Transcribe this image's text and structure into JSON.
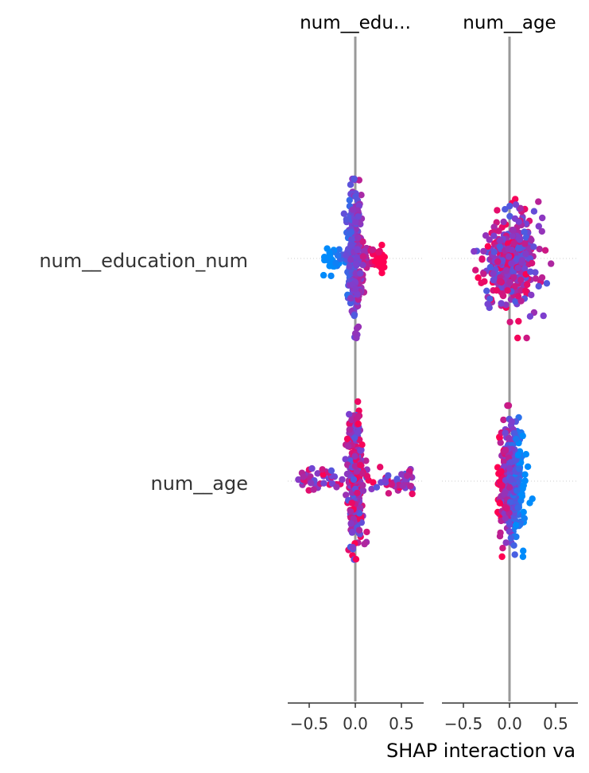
{
  "chart_data": {
    "type": "scatter",
    "plot_kind": "SHAP interaction beeswarm",
    "xlabel": "SHAP interaction va",
    "row_labels": [
      "num__education_num",
      "num__age"
    ],
    "panels": [
      {
        "title": "num__edu...",
        "xlim": [
          -0.72,
          0.74
        ],
        "xticks": [
          -0.5,
          0.0,
          0.5
        ],
        "xtick_labels": [
          "−0.5",
          "0.0",
          "0.5"
        ],
        "rows": [
          {
            "row": "num__education_num",
            "spread": [
              -0.35,
              0.32
            ],
            "vertical_extent": [
              -0.45,
              0.45
            ]
          },
          {
            "row": "num__age",
            "spread": [
              -0.62,
              0.65
            ],
            "vertical_extent": [
              -0.45,
              0.45
            ]
          }
        ]
      },
      {
        "title": "num__age",
        "xlim": [
          -0.72,
          0.74
        ],
        "xticks": [
          -0.5,
          0.0,
          0.5
        ],
        "xtick_labels": [
          "−0.5",
          "0.0",
          "0.5"
        ],
        "rows": [
          {
            "row": "num__education_num",
            "spread": [
              -0.62,
              0.45
            ],
            "vertical_extent": [
              -0.45,
              0.45
            ]
          },
          {
            "row": "num__age",
            "spread": [
              -0.25,
              0.32
            ],
            "vertical_extent": [
              -0.45,
              0.45
            ]
          }
        ]
      }
    ],
    "colors": {
      "low": "#008bfb",
      "mid": "#7c3fd0",
      "high": "#ff0052",
      "zero_line": "#999999",
      "row_guide": "#cccccc",
      "axis": "#333333",
      "text": "#333333"
    }
  }
}
